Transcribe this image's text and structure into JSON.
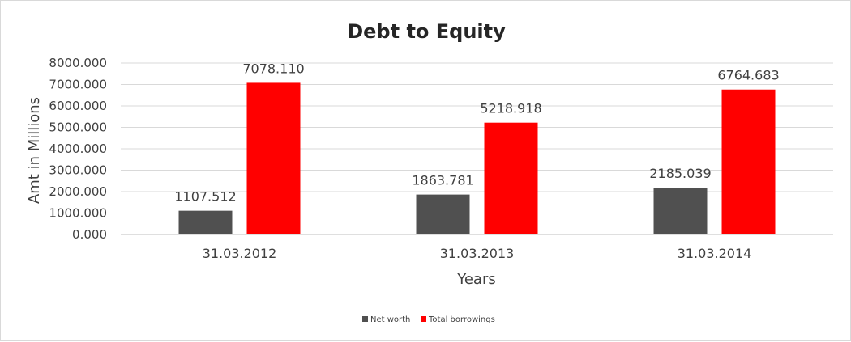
{
  "chart_data": {
    "type": "bar",
    "title": "Debt to Equity",
    "xlabel": "Years",
    "ylabel": "Amt in Millions",
    "categories": [
      "31.03.2012",
      "31.03.2013",
      "31.03.2014"
    ],
    "series": [
      {
        "name": "Net worth",
        "color": "#505050",
        "values": [
          1107.512,
          1863.781,
          2185.039
        ],
        "labels": [
          "1107.512",
          "1863.781",
          "2185.039"
        ]
      },
      {
        "name": "Total borrowings",
        "color": "#ff0000",
        "values": [
          7078.11,
          5218.918,
          6764.683
        ],
        "labels": [
          "7078.110",
          "5218.918",
          "6764.683"
        ]
      }
    ],
    "ylim": [
      0,
      8000
    ],
    "yticks": [
      "0.000",
      "1000.000",
      "2000.000",
      "3000.000",
      "4000.000",
      "5000.000",
      "6000.000",
      "7000.000",
      "8000.000"
    ],
    "grid": true,
    "legend": "bottom"
  }
}
